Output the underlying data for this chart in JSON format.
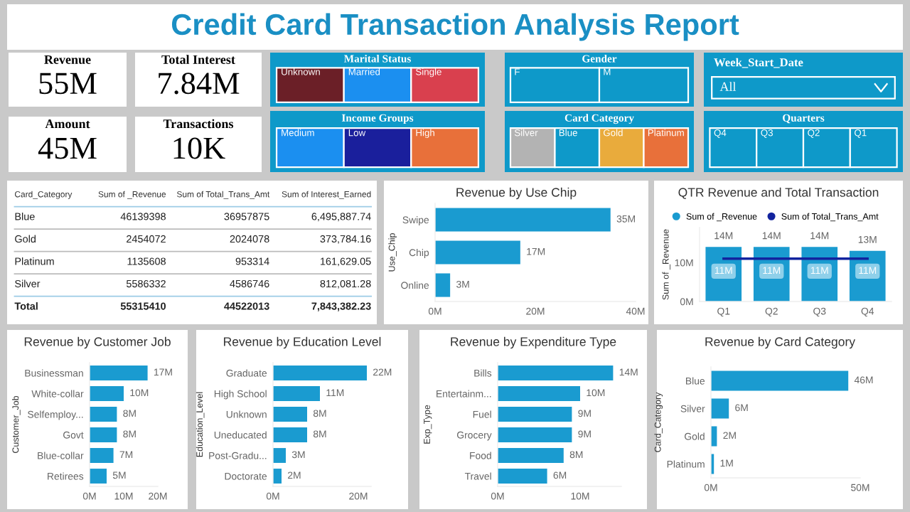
{
  "chart_data": [
    {
      "type": "other",
      "title": "Credit Card Transaction Analysis Report"
    },
    {
      "type": "other",
      "title": "Revenue",
      "annotations": [
        "55M"
      ]
    },
    {
      "type": "other",
      "title": "Total Interest",
      "annotations": [
        "7.84M"
      ]
    },
    {
      "type": "other",
      "title": "Marital Status",
      "categories": [
        "Unknown",
        "Married",
        "Single"
      ],
      "colors": [
        "#6b1f27",
        "#1b8ff0",
        "#d9404e"
      ]
    },
    {
      "type": "other",
      "title": "Gender",
      "categories": [
        "F",
        "M"
      ],
      "colors": [
        "#0e99c9",
        "#0e99c9"
      ]
    },
    {
      "type": "other",
      "title": "Week_Start_Date",
      "annotations": [
        "All"
      ]
    },
    {
      "type": "other",
      "title": "Amount",
      "annotations": [
        "45M"
      ]
    },
    {
      "type": "other",
      "title": "Transactions",
      "annotations": [
        "10K"
      ]
    },
    {
      "type": "other",
      "title": "Income Groups",
      "categories": [
        "Medium",
        "Low",
        "High"
      ],
      "colors": [
        "#1b8ff0",
        "#1a1f9c",
        "#e8703a"
      ]
    },
    {
      "type": "other",
      "title": "Card Category",
      "categories": [
        "Silver",
        "Blue",
        "Gold",
        "Platinum"
      ],
      "colors": [
        "#b3b3b3",
        "#0e99c9",
        "#e9ab3c",
        "#e8703a"
      ]
    },
    {
      "type": "other",
      "title": "Quarters",
      "categories": [
        "Q4",
        "Q3",
        "Q2",
        "Q1"
      ],
      "colors": [
        "#0e99c9",
        "#0e99c9",
        "#0e99c9",
        "#0e99c9"
      ]
    },
    {
      "type": "other",
      "xlabel": "Card_Category",
      "categories": [
        "Blue",
        "Gold",
        "Platinum",
        "Silver",
        "Total"
      ],
      "series": [
        {
          "name": "Sum of _Revenue",
          "values": [
            46139398,
            2454072,
            1135608,
            5586332,
            55315410
          ],
          "value_labels": [
            "46139398",
            "2454072",
            "1135608",
            "5586332",
            "55315410"
          ]
        },
        {
          "name": "Sum of Total_Trans_Amt",
          "values": [
            36957875,
            2024078,
            953314,
            4586746,
            44522013
          ],
          "value_labels": [
            "36957875",
            "2024078",
            "953314",
            "4586746",
            "44522013"
          ]
        },
        {
          "name": "Sum of Interest_Earned",
          "values": [
            6495887.74,
            373784.16,
            161629.05,
            812081.28,
            7843382.23
          ],
          "value_labels": [
            "6,495,887.74",
            "373,784.16",
            "161,629.05",
            "812,081.28",
            "7,843,382.23"
          ]
        }
      ]
    },
    {
      "type": "bar",
      "orientation": "horizontal",
      "title": "Revenue by Use Chip",
      "ylabel": "Use_Chip",
      "categories": [
        "Swipe",
        "Chip",
        "Online"
      ],
      "values": [
        35,
        17,
        3
      ],
      "value_labels": [
        "35M",
        "17M",
        "3M"
      ],
      "color": "#1a9bd0",
      "xlim": [
        0,
        40
      ],
      "xticks": [
        {
          "value": 0,
          "label": "0M"
        },
        {
          "value": 20,
          "label": "20M"
        },
        {
          "value": 40,
          "label": "40M"
        }
      ]
    },
    {
      "type": "bar",
      "title": "QTR Revenue and Total Transaction",
      "ylabel": "Sum of _Revenue",
      "categories": [
        "Q1",
        "Q2",
        "Q3",
        "Q4"
      ],
      "legend": "top left",
      "ylim": [
        0,
        19
      ],
      "yticks": [
        {
          "value": 0,
          "label": "0M"
        },
        {
          "value": 10,
          "label": "10M"
        }
      ],
      "series": [
        {
          "name": "Sum of _Revenue",
          "type": "bar",
          "color": "#1a9bd0",
          "values": [
            14,
            14,
            14,
            13
          ],
          "value_labels": [
            "14M",
            "14M",
            "14M",
            "13M"
          ]
        },
        {
          "name": "Sum of Total_Trans_Amt",
          "type": "line",
          "color": "#12239e",
          "values": [
            11,
            11,
            11,
            11
          ],
          "value_labels": [
            "11M",
            "11M",
            "11M",
            "11M"
          ]
        }
      ]
    },
    {
      "type": "bar",
      "orientation": "horizontal",
      "title": "Revenue by Customer Job",
      "ylabel": "Customer_Job",
      "categories": [
        "Businessman",
        "White-collar",
        "Selfemploy...",
        "Govt",
        "Blue-collar",
        "Retirees"
      ],
      "values": [
        17,
        10,
        8,
        8,
        7,
        5
      ],
      "value_labels": [
        "17M",
        "10M",
        "8M",
        "8M",
        "7M",
        "5M"
      ],
      "color": "#1a9bd0",
      "xlim": [
        0,
        20
      ],
      "xticks": [
        {
          "value": 0,
          "label": "0M"
        },
        {
          "value": 10,
          "label": "10M"
        },
        {
          "value": 20,
          "label": "20M"
        }
      ]
    },
    {
      "type": "bar",
      "orientation": "horizontal",
      "title": "Revenue by Education Level",
      "ylabel": "Education_Level",
      "categories": [
        "Graduate",
        "High School",
        "Unknown",
        "Uneducated",
        "Post-Gradu...",
        "Doctorate"
      ],
      "values": [
        22,
        11,
        8,
        8,
        3,
        2
      ],
      "value_labels": [
        "22M",
        "11M",
        "8M",
        "8M",
        "3M",
        "2M"
      ],
      "color": "#1a9bd0",
      "xlim": [
        0,
        23
      ],
      "xticks": [
        {
          "value": 0,
          "label": "0M"
        },
        {
          "value": 20,
          "label": "20M"
        }
      ]
    },
    {
      "type": "bar",
      "orientation": "horizontal",
      "title": "Revenue by Expenditure Type",
      "ylabel": "Exp_Type",
      "categories": [
        "Bills",
        "Entertainm...",
        "Fuel",
        "Grocery",
        "Food",
        "Travel"
      ],
      "values": [
        14,
        10,
        9,
        9,
        8,
        6
      ],
      "value_labels": [
        "14M",
        "10M",
        "9M",
        "9M",
        "8M",
        "6M"
      ],
      "color": "#1a9bd0",
      "xlim": [
        0,
        15
      ],
      "xticks": [
        {
          "value": 0,
          "label": "0M"
        },
        {
          "value": 10,
          "label": "10M"
        }
      ]
    },
    {
      "type": "bar",
      "orientation": "horizontal",
      "title": "Revenue by Card Category",
      "ylabel": "Card_Category",
      "categories": [
        "Blue",
        "Silver",
        "Gold",
        "Platinum"
      ],
      "values": [
        46,
        6,
        2,
        1
      ],
      "value_labels": [
        "46M",
        "6M",
        "2M",
        "1M"
      ],
      "color": "#1a9bd0",
      "xlim": [
        0,
        50
      ],
      "xticks": [
        {
          "value": 0,
          "label": "0M"
        },
        {
          "value": 50,
          "label": "50M"
        }
      ]
    }
  ]
}
